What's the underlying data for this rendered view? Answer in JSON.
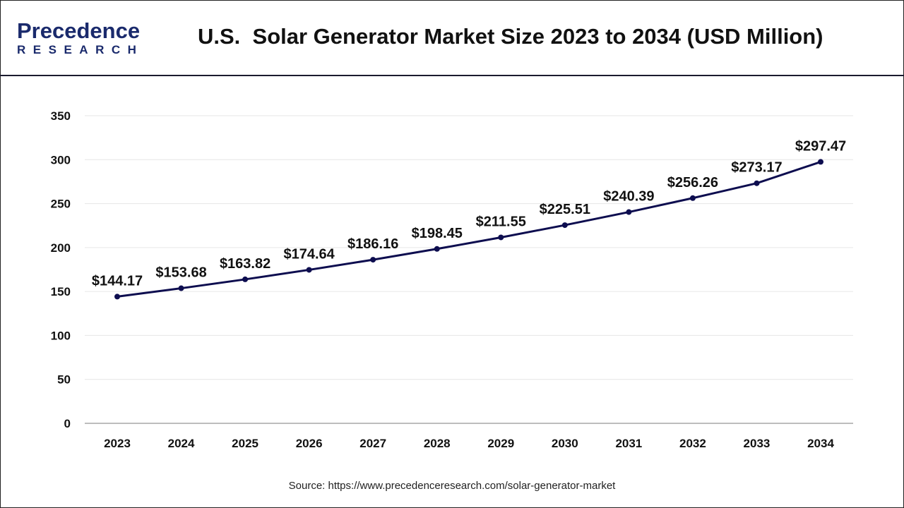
{
  "header": {
    "logo_text": "Precedence",
    "logo_subtext": "RESEARCH",
    "title": "U.S.  Solar Generator Market Size 2023 to 2034 (USD Million)"
  },
  "chart_data": {
    "type": "line",
    "title": "U.S.  Solar Generator Market Size 2023 to 2034 (USD Million)",
    "categories": [
      "2023",
      "2024",
      "2025",
      "2026",
      "2027",
      "2028",
      "2029",
      "2030",
      "2031",
      "2032",
      "2033",
      "2034"
    ],
    "values": [
      144.17,
      153.68,
      163.82,
      174.64,
      186.16,
      198.45,
      211.55,
      225.51,
      240.39,
      256.26,
      273.17,
      297.47
    ],
    "data_labels": [
      "$144.17",
      "$153.68",
      "$163.82",
      "$174.64",
      "$186.16",
      "$198.45",
      "$211.55",
      "$225.51",
      "$240.39",
      "$256.26",
      "$273.17",
      "$297.47"
    ],
    "yticks": [
      0,
      50,
      100,
      150,
      200,
      250,
      300,
      350
    ],
    "ylim": [
      0,
      350
    ],
    "grid": true,
    "line_color": "#0d0d4f",
    "xlabel": "",
    "ylabel": ""
  },
  "footer": {
    "source": "Source: https://www.precedenceresearch.com/solar-generator-market"
  }
}
